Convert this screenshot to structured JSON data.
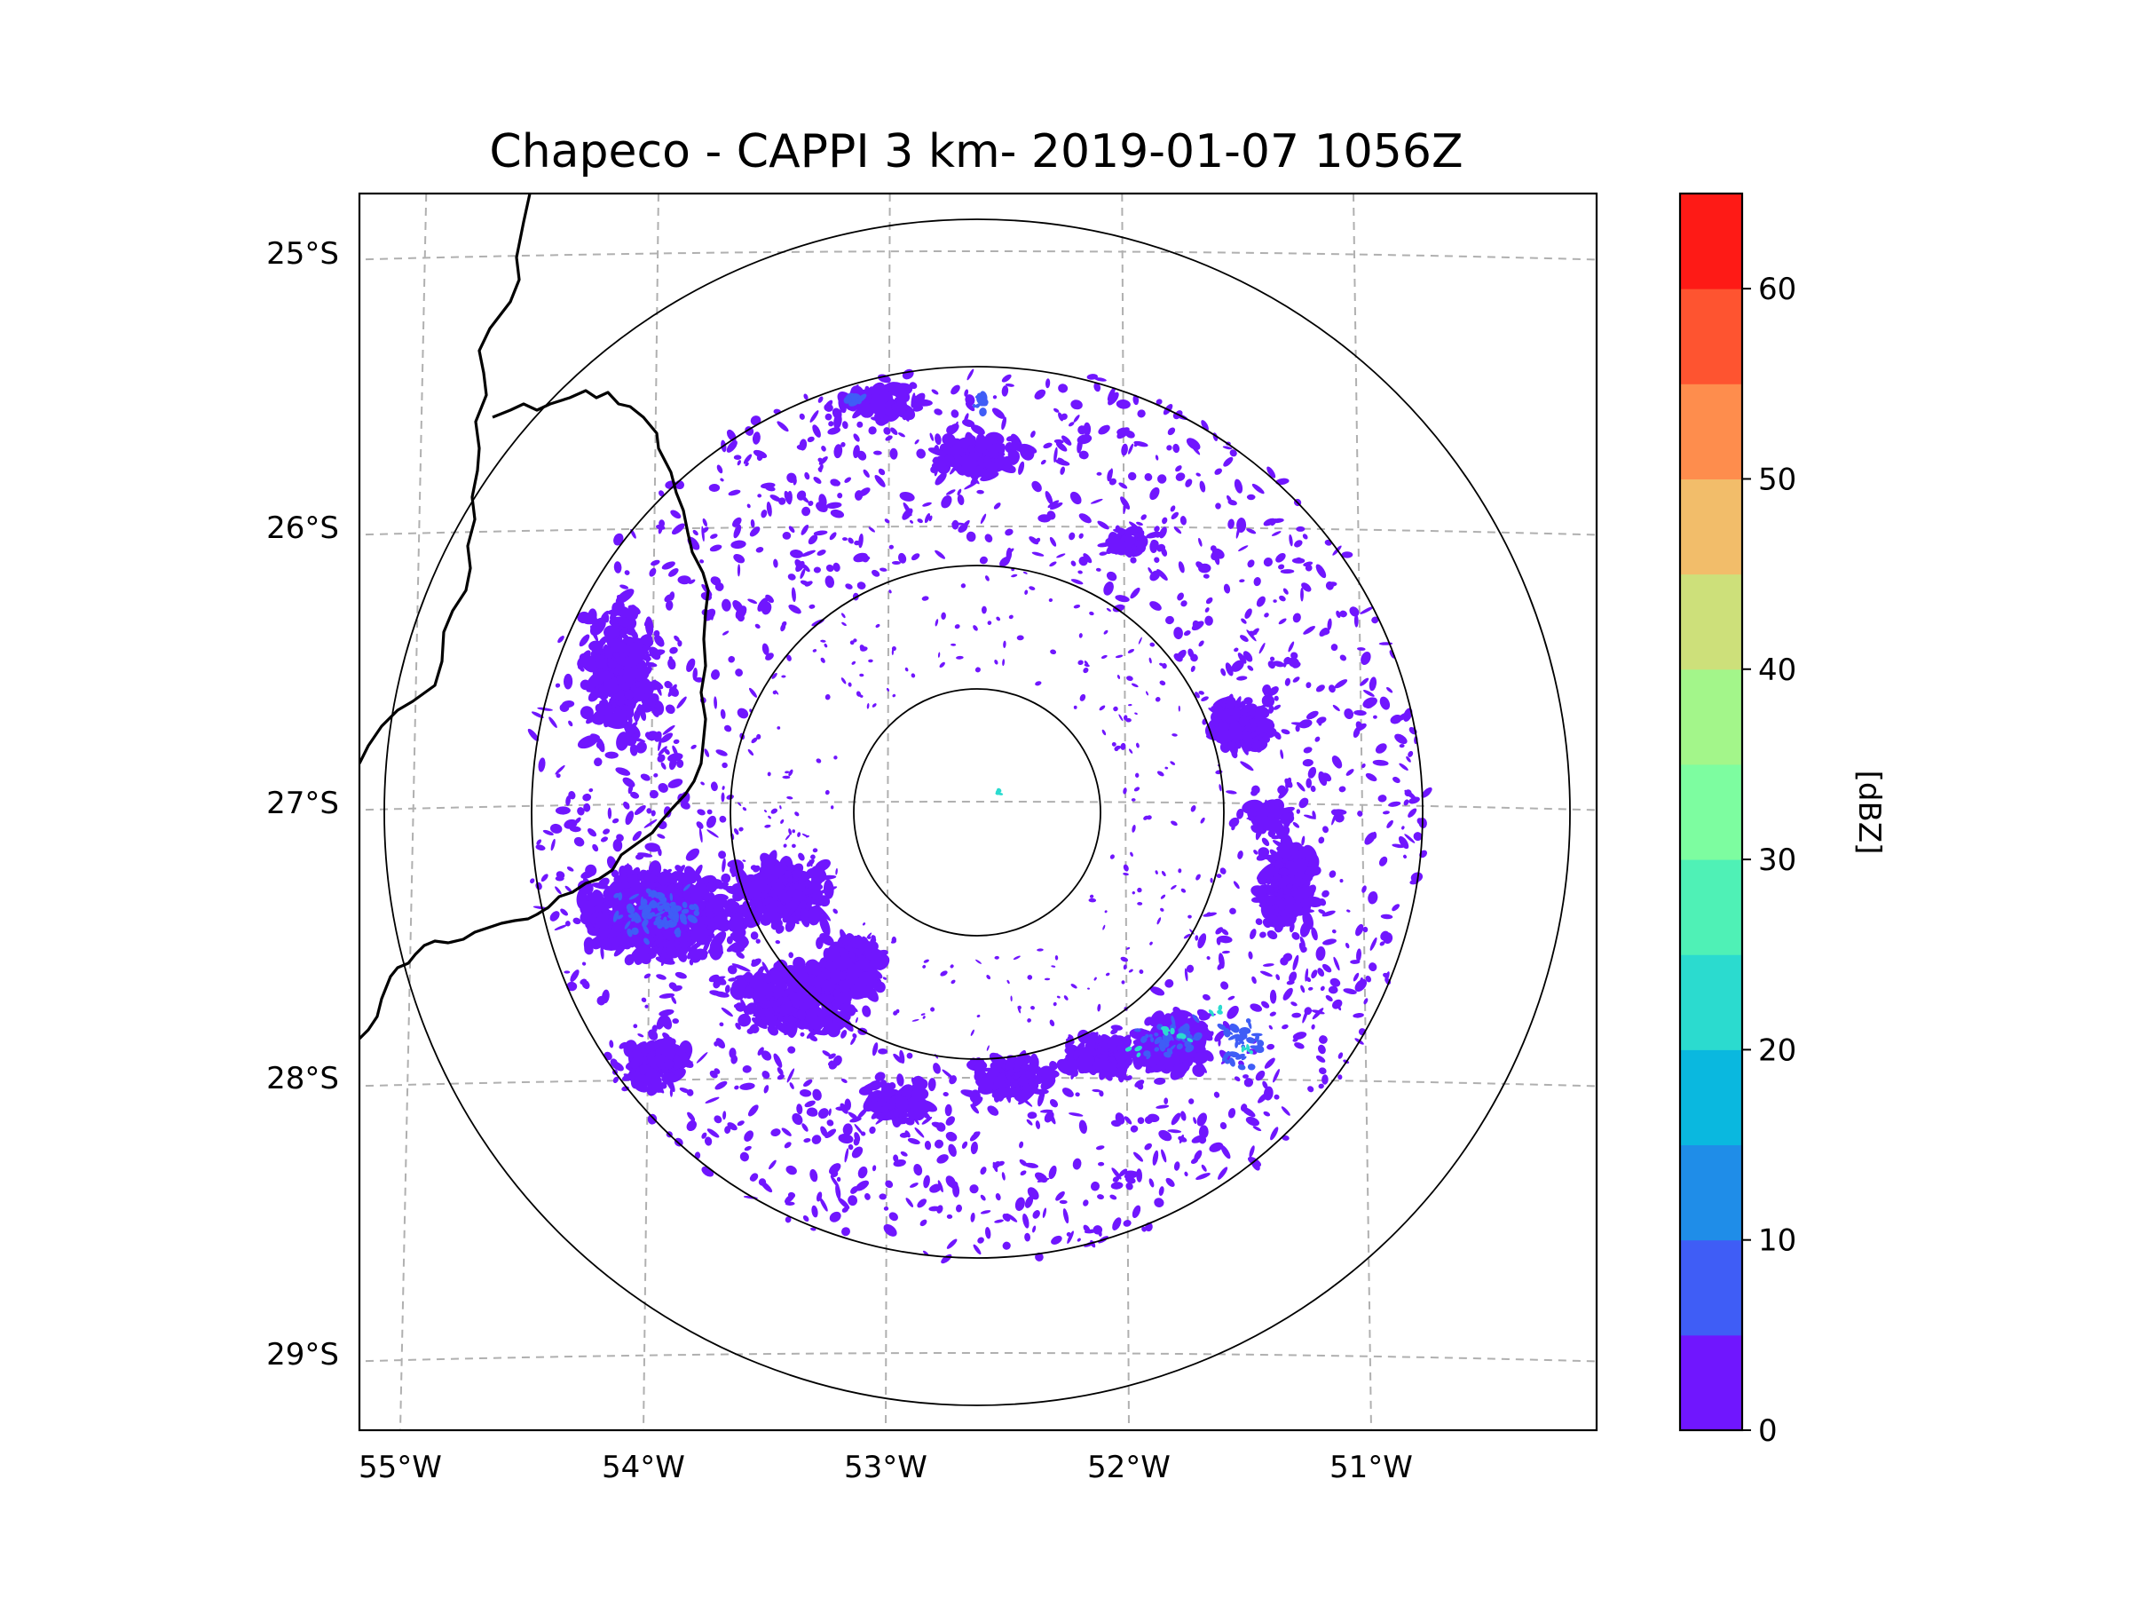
{
  "map": {
    "title": "Chapeco - CAPPI 3 km- 2019-01-07 1056Z",
    "lat_labels": [
      "25°S",
      "26°S",
      "27°S",
      "28°S",
      "29°S"
    ],
    "lon_labels": [
      "55°W",
      "54°W",
      "53°W",
      "52°W",
      "51°W"
    ],
    "lat_values": [
      -25,
      -26,
      -27,
      -28,
      -29
    ],
    "lon_values": [
      -55,
      -54,
      -53,
      -52,
      -51
    ],
    "extent": {
      "lon_min": -55.17,
      "lon_max": -50.08,
      "lat_min": -29.28,
      "lat_max": -24.78
    },
    "radar_center": {
      "lon": -52.62,
      "lat": -27.03
    },
    "range_ring_count": 4,
    "features": [
      "state-border-santa-catarina",
      "international-border-argentina",
      "reflectivity-echoes"
    ]
  },
  "colorbar": {
    "label": "[dBZ]",
    "min": 0,
    "max": 65,
    "step": 5,
    "tick_values": [
      0,
      10,
      20,
      30,
      40,
      50,
      60
    ],
    "tick_labels": [
      "0",
      "10",
      "20",
      "30",
      "40",
      "50",
      "60"
    ],
    "colors": [
      "#7016fe",
      "#3f5df6",
      "#1f8de8",
      "#0ab8df",
      "#2bdbcf",
      "#4ff1b6",
      "#7dfda0",
      "#a3f68a",
      "#cde07a",
      "#f2bd6a",
      "#fe8d4d",
      "#fe5430",
      "#fe1a16"
    ]
  },
  "colors": {
    "echo_base": "#7016fe",
    "echo_mid": "#3f5df6",
    "echo_high": "#2bdbcf",
    "grid": "#b0b0b0",
    "ring": "#000000",
    "border": "#000000"
  }
}
